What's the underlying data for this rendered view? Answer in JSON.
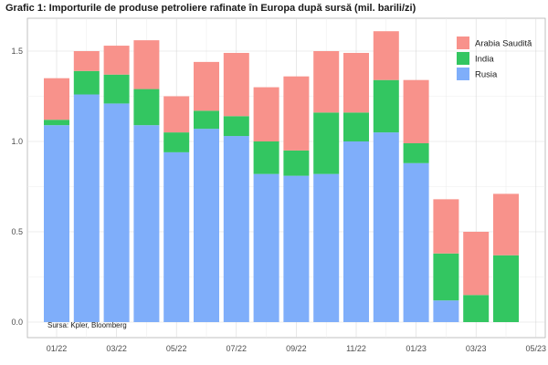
{
  "chart_data": {
    "type": "bar",
    "stacked": true,
    "title": "Grafic 1: Importurile de produse petroliere rafinate în Europa după sursă (mil. barili/zi)",
    "source_note": "Sursa: Kpler, Bloomberg",
    "ylim": [
      0,
      1.65
    ],
    "yticks": [
      0.0,
      0.5,
      1.0,
      1.5
    ],
    "ytick_labels": [
      "0.0",
      "0.5",
      "1.0",
      "1.5"
    ],
    "xticks": [
      {
        "label": "01/22",
        "index": 0
      },
      {
        "label": "03/22",
        "index": 2
      },
      {
        "label": "05/22",
        "index": 4
      },
      {
        "label": "07/22",
        "index": 6
      },
      {
        "label": "09/22",
        "index": 8
      },
      {
        "label": "11/22",
        "index": 10
      },
      {
        "label": "01/23",
        "index": 12
      },
      {
        "label": "03/23",
        "index": 14
      },
      {
        "label": "05/23",
        "index": 16
      }
    ],
    "categories": [
      "01/22",
      "02/22",
      "03/22",
      "04/22",
      "05/22",
      "06/22",
      "07/22",
      "08/22",
      "09/22",
      "10/22",
      "11/22",
      "12/22",
      "01/23",
      "02/23",
      "03/23",
      "04/23"
    ],
    "series": [
      {
        "name": "Rusia",
        "color": "#7FAEFA",
        "values": [
          1.09,
          1.26,
          1.21,
          1.09,
          0.94,
          1.07,
          1.03,
          0.82,
          0.81,
          0.82,
          1.0,
          1.05,
          0.88,
          0.12,
          0.0,
          0.0
        ]
      },
      {
        "name": "India",
        "color": "#33C661",
        "values": [
          0.03,
          0.13,
          0.16,
          0.2,
          0.11,
          0.1,
          0.11,
          0.18,
          0.14,
          0.34,
          0.16,
          0.29,
          0.11,
          0.26,
          0.15,
          0.37
        ]
      },
      {
        "name": "Arabia Saudită",
        "color": "#F8928B",
        "values": [
          0.23,
          0.11,
          0.16,
          0.27,
          0.2,
          0.27,
          0.35,
          0.3,
          0.41,
          0.34,
          0.33,
          0.27,
          0.35,
          0.3,
          0.35,
          0.34
        ]
      }
    ],
    "legend_order": [
      "Arabia Saudită",
      "India",
      "Rusia"
    ],
    "legend_position": "top-right",
    "grid": true
  }
}
